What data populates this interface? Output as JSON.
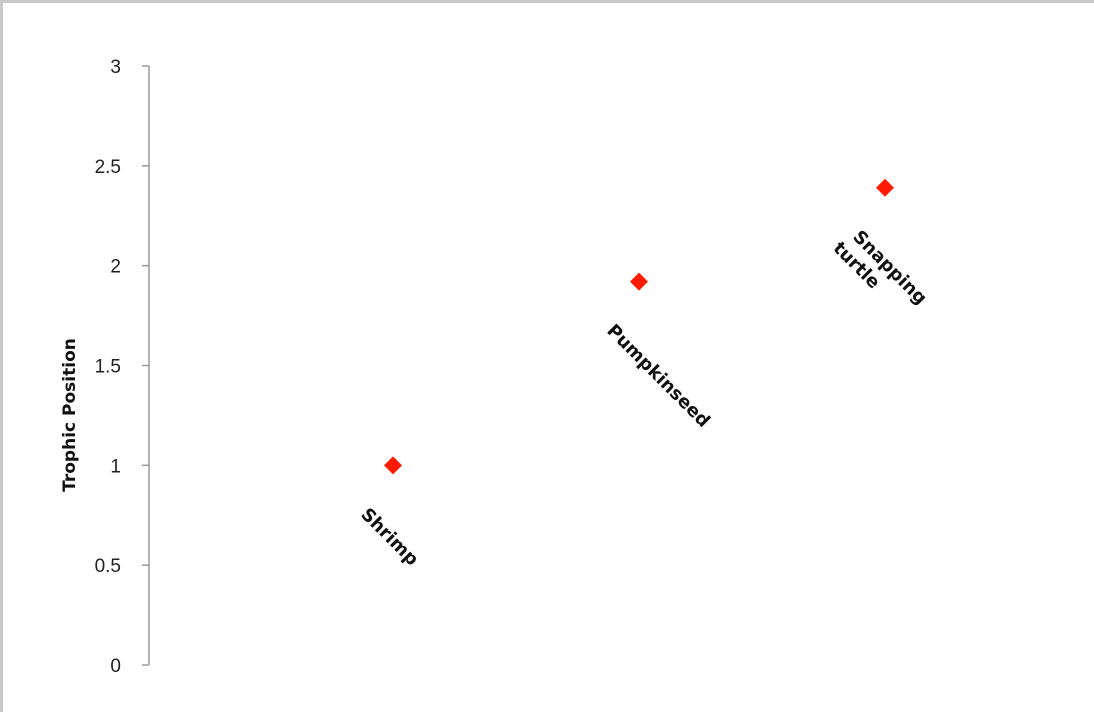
{
  "chart_data": {
    "type": "scatter",
    "title": "",
    "xlabel": "",
    "ylabel": "Trophic Position",
    "ylim": [
      0,
      3
    ],
    "yticks": [
      "0",
      "0.5",
      "1",
      "1.5",
      "2",
      "2.5",
      "3"
    ],
    "grid": false,
    "legend": "none",
    "marker": "diamond",
    "marker_color": "#ff1a00",
    "points": [
      {
        "label": "Shrimp",
        "y": 1.0
      },
      {
        "label": "Pumpkinseed",
        "y": 1.92
      },
      {
        "label": "Snapping turtle",
        "label_lines": [
          "Snapping",
          "turtle"
        ],
        "y": 2.39
      }
    ]
  }
}
